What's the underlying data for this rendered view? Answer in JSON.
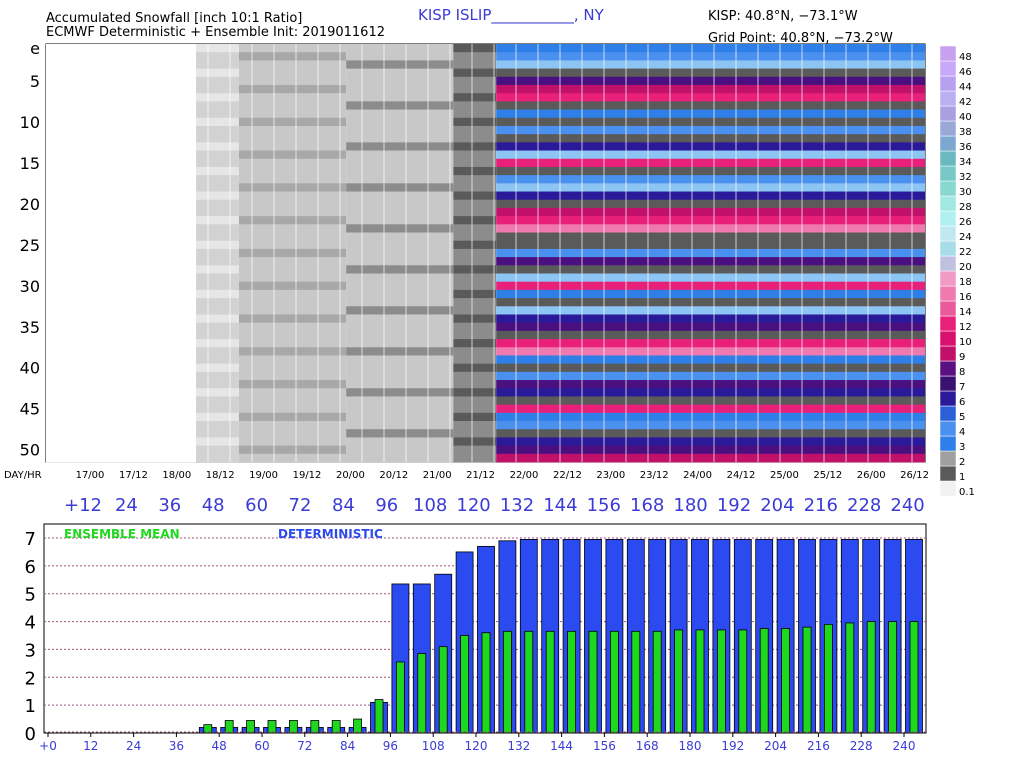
{
  "header": {
    "title_line1": "Accumulated Snowfall [inch 10:1 Ratio]",
    "title_line2": "ECMWF Deterministic + Ensemble Init: 2019011612",
    "station": "KISP  ISLIP___________, NY",
    "coords": "KISP:  40.8°N,  −73.1°W",
    "grid_point": "Grid Point: 40.8°N,  −73.2°W"
  },
  "colors": {
    "deterministic": "#2b4bf0",
    "ensemble_mean": "#1ed81e",
    "hour_label": "#3b3bd6",
    "gridline": "#a05080"
  },
  "chart_data": [
    {
      "type": "heatmap",
      "title": "Accumulated Snowfall [inch 10:1 Ratio]",
      "y_tick_labels": [
        "e",
        "5",
        "10",
        "15",
        "20",
        "25",
        "30",
        "35",
        "40",
        "45",
        "50"
      ],
      "x_corner_label": "DAY/HR",
      "x_day_labels": [
        "17/00",
        "17/12",
        "18/00",
        "18/12",
        "19/00",
        "19/12",
        "20/00",
        "20/12",
        "21/00",
        "21/12",
        "22/00",
        "22/12",
        "23/00",
        "23/12",
        "24/00",
        "24/12",
        "25/00",
        "25/12",
        "26/00",
        "26/12"
      ],
      "x_hour_labels": [
        "+12",
        "24",
        "36",
        "48",
        "60",
        "72",
        "84",
        "96",
        "108",
        "120",
        "132",
        "144",
        "156",
        "168",
        "180",
        "192",
        "204",
        "216",
        "228",
        "240"
      ],
      "legend_labels": [
        "0.1",
        "1",
        "2",
        "3",
        "4",
        "5",
        "6",
        "7",
        "8",
        "9",
        "10",
        "12",
        "14",
        "16",
        "18",
        "20",
        "22",
        "24",
        "26",
        "28",
        "30",
        "32",
        "34",
        "36",
        "38",
        "40",
        "42",
        "44",
        "46",
        "48"
      ],
      "legend_colors": [
        "#f2f2f2",
        "#5a5a5a",
        "#a0a0a0",
        "#2f7fe8",
        "#4a90ee",
        "#2a5fd8",
        "#2a1a9a",
        "#3a1070",
        "#5a1080",
        "#c0106a",
        "#d81070",
        "#e8207a",
        "#e85a9a",
        "#f07ab0",
        "#f09ac4",
        "#c0c0e0",
        "#a8dce8",
        "#bfe8f0",
        "#b0f0f0",
        "#a0e8e0",
        "#88d8d0",
        "#78c8c8",
        "#6ab8c0",
        "#7ca8d0",
        "#9aa8d8",
        "#a8a0e0",
        "#b8b0f0",
        "#b8a0f0",
        "#c8a8f8",
        "#c8a0f0"
      ],
      "members": 51
    },
    {
      "type": "bar",
      "x_label_every": 12,
      "x_tick_labels": [
        "+0",
        "12",
        "24",
        "36",
        "48",
        "60",
        "72",
        "84",
        "96",
        "108",
        "120",
        "132",
        "144",
        "156",
        "168",
        "180",
        "192",
        "204",
        "216",
        "228",
        "240"
      ],
      "ylim": [
        0,
        7
      ],
      "y_ticks": [
        0,
        1,
        2,
        3,
        4,
        5,
        6,
        7
      ],
      "grid": true,
      "legend_position": "top-left",
      "x": [
        0,
        6,
        12,
        18,
        24,
        30,
        36,
        42,
        48,
        54,
        60,
        66,
        72,
        78,
        84,
        90,
        96,
        102,
        108,
        114,
        120,
        126,
        132,
        138,
        144,
        150,
        156,
        162,
        168,
        174,
        180,
        186,
        192,
        198,
        204,
        210,
        216,
        222,
        228,
        234,
        240
      ],
      "series": [
        {
          "name": "DETERMINISTIC",
          "values": [
            0,
            0,
            0,
            0,
            0,
            0,
            0,
            0.2,
            0.2,
            0.2,
            0.2,
            0.2,
            0.2,
            0.2,
            0.2,
            1.1,
            5.35,
            5.35,
            5.7,
            6.5,
            6.7,
            6.9,
            6.95,
            6.95,
            6.95,
            6.95,
            6.95,
            6.95,
            6.95,
            6.95,
            6.95,
            6.95,
            6.95,
            6.95,
            6.95,
            6.95,
            6.95,
            6.95,
            6.95,
            6.95,
            6.95
          ]
        },
        {
          "name": "ENSEMBLE MEAN",
          "values": [
            0,
            0,
            0,
            0,
            0,
            0,
            0,
            0.3,
            0.45,
            0.45,
            0.45,
            0.45,
            0.45,
            0.45,
            0.5,
            1.2,
            2.55,
            2.85,
            3.1,
            3.5,
            3.6,
            3.65,
            3.65,
            3.65,
            3.65,
            3.65,
            3.65,
            3.65,
            3.65,
            3.7,
            3.7,
            3.7,
            3.7,
            3.75,
            3.75,
            3.8,
            3.9,
            3.95,
            4.0,
            4.0,
            4.0
          ]
        }
      ]
    }
  ]
}
